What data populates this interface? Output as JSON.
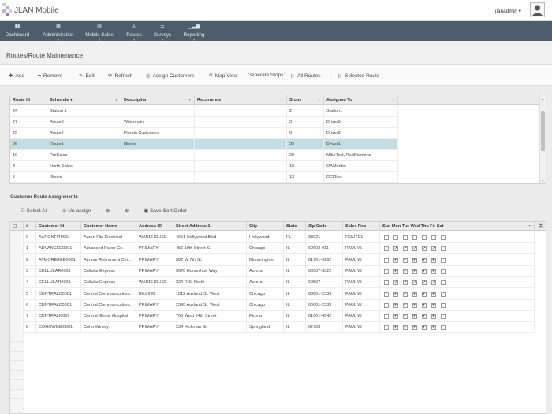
{
  "app": {
    "title": "JLAN Mobile",
    "user": "jlanadmin"
  },
  "nav": [
    {
      "label": "Dashboard",
      "icon": "dashboard-icon"
    },
    {
      "label": "Administration",
      "icon": "admin-icon"
    },
    {
      "label": "Mobile Sales",
      "icon": "mobile-sales-icon"
    },
    {
      "label": "Routes",
      "icon": "routes-icon"
    },
    {
      "label": "Surveys",
      "icon": "surveys-icon"
    },
    {
      "label": "Reporting",
      "icon": "reporting-icon"
    }
  ],
  "page": {
    "title": "Routes/Route Maintenance"
  },
  "toolbar": {
    "add": "Add",
    "remove": "Remove",
    "edit": "Edit",
    "refresh": "Refresh",
    "assign_customers": "Assign Customers",
    "map_view": "Map View",
    "generate_stops": "Generate Stops:",
    "all_routes": "All Routes",
    "separator": "|",
    "selected_route": "Selected Route"
  },
  "routes_grid": {
    "columns": [
      "Route Id",
      "Schedule",
      "Description",
      "Recurrence",
      "Stops",
      "Assigned To"
    ],
    "rows": [
      [
        "24",
        "Station 1",
        "",
        "",
        "2",
        "Station1"
      ],
      [
        "27",
        "Route3",
        "Wisconsin",
        "",
        "3",
        "Driver3"
      ],
      [
        "25",
        "Route2",
        "Florida Customers",
        "",
        "6",
        "Driver2"
      ],
      [
        "26",
        "Route1",
        "Illinois",
        "",
        "22",
        "Driver1"
      ],
      [
        "10",
        "PreSales",
        "",
        "",
        "29",
        "MikeTest, RedDiamond"
      ],
      [
        "3",
        "North Sales",
        "",
        "",
        "18",
        "OAMentor"
      ],
      [
        "5",
        "Illinois",
        "",
        "",
        "13",
        "DCITest"
      ]
    ],
    "selected_row": 3
  },
  "assignments": {
    "title": "Customer Route Assignments",
    "select_all": "Select All",
    "unassign": "Un-assign",
    "save_sort_order": "Save Sort Order",
    "columns": [
      "#",
      "Customer Id",
      "Customer Name",
      "Address ID",
      "Street Address 1",
      "City",
      "State",
      "Zip Code",
      "Sales Rep",
      "Sun Mon Tue Wed Thu Fri Sat"
    ],
    "rows": [
      [
        "0",
        "AARONFIT0001",
        "Aaron Fitz Electrical",
        "WAREHOUSE",
        "4651 Hollywood Blvd",
        "Hollywood",
        "FL",
        "33021",
        "ROUTE1"
      ],
      [
        "1",
        "ADVANCED0001",
        "Advanced Paper Co.",
        "PRIMARY",
        "456 19th Street S.",
        "Chicago",
        "IL",
        "60603-911",
        "PAUL W."
      ],
      [
        "2",
        "ATMOREREE0001",
        "Atmore Retirement Cen...",
        "PRIMARY",
        "587 W 7th St.",
        "Bloomington",
        "IL",
        "61701-9292",
        "PAUL W."
      ],
      [
        "3",
        "CELLULAR0001",
        "Cellular Express",
        "PRIMARY",
        "5678 Horseshoe Way",
        "Aurora",
        "IL",
        "60507-3322",
        "PAUL W."
      ],
      [
        "4",
        "CELLULAR0001",
        "Cellular Express",
        "WAREHOUSE",
        "224 R St North",
        "Aurora",
        "IL",
        "60507",
        "PAUL W."
      ],
      [
        "5",
        "CENTRALC0001",
        "Central Communication...",
        "BILLING",
        "1012 Aukland St. West",
        "Chicago",
        "IL",
        "60601-2333",
        "PAUL W."
      ],
      [
        "6",
        "CENTRALC0001",
        "Central Communication...",
        "PRIMARY",
        "2343 Aukland St. West",
        "Chicago",
        "IL",
        "60601-2333",
        "PAUL W."
      ],
      [
        "7",
        "CENTRALI0001",
        "Central Illinois Hospital",
        "PRIMARY",
        "765 West 24th Street",
        "Peoria",
        "IL",
        "61601-4542",
        "PAUL W."
      ],
      [
        "8",
        "COHOWINE0001",
        "Coho Winery",
        "PRIMARY",
        "234 Hickman St.",
        "Springfield",
        "IL",
        "62703",
        "PAUL W."
      ]
    ],
    "days": [
      [
        false,
        false,
        false,
        false,
        false,
        false,
        false
      ],
      [
        false,
        true,
        true,
        true,
        true,
        true,
        false
      ],
      [
        false,
        true,
        true,
        true,
        true,
        true,
        false
      ],
      [
        false,
        true,
        true,
        true,
        true,
        true,
        false
      ],
      [
        false,
        true,
        true,
        true,
        true,
        true,
        false
      ],
      [
        false,
        true,
        true,
        true,
        true,
        true,
        false
      ],
      [
        false,
        true,
        true,
        true,
        true,
        true,
        false
      ],
      [
        false,
        true,
        true,
        true,
        true,
        true,
        false
      ],
      [
        false,
        true,
        true,
        true,
        true,
        true,
        false
      ]
    ]
  }
}
